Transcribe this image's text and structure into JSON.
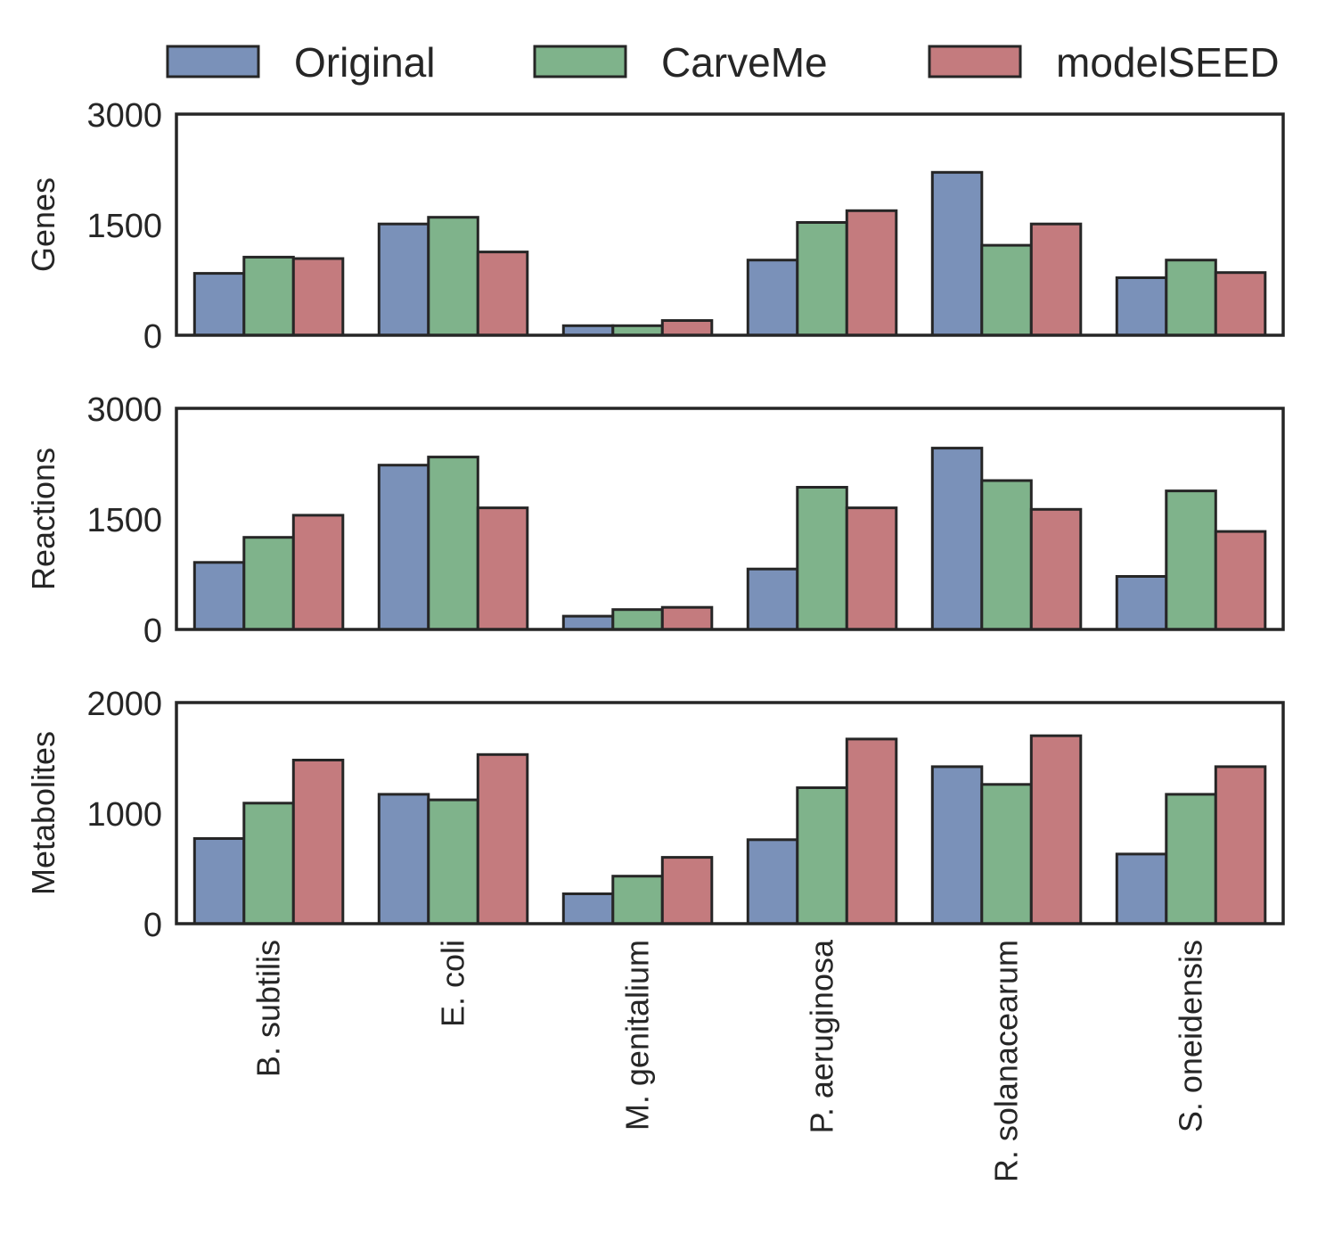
{
  "chart_data": {
    "type": "bar",
    "categories": [
      "B. subtilis",
      "E. coli",
      "M. genitalium",
      "P. aeruginosa",
      "R. solanacearum",
      "S. oneidensis"
    ],
    "legend": {
      "placement": "top",
      "entries": [
        {
          "name": "Original",
          "color": "#7a91b9"
        },
        {
          "name": "CarveMe",
          "color": "#7fb38b"
        },
        {
          "name": "modelSEED",
          "color": "#c47b7e"
        }
      ]
    },
    "panels": [
      {
        "ylabel": "Genes",
        "ylim": [
          0,
          3000
        ],
        "yticks": [
          "0",
          "1500",
          "3000"
        ],
        "series": [
          {
            "name": "Original",
            "values": [
              840,
              1510,
              130,
              1020,
              2210,
              780
            ]
          },
          {
            "name": "CarveMe",
            "values": [
              1060,
              1600,
              130,
              1530,
              1220,
              1020
            ]
          },
          {
            "name": "modelSEED",
            "values": [
              1040,
              1130,
              200,
              1690,
              1510,
              850
            ]
          }
        ]
      },
      {
        "ylabel": "Reactions",
        "ylim": [
          0,
          3000
        ],
        "yticks": [
          "0",
          "1500",
          "3000"
        ],
        "series": [
          {
            "name": "Original",
            "values": [
              910,
              2230,
              180,
              820,
              2460,
              720
            ]
          },
          {
            "name": "CarveMe",
            "values": [
              1250,
              2340,
              270,
              1930,
              2020,
              1880
            ]
          },
          {
            "name": "modelSEED",
            "values": [
              1550,
              1650,
              300,
              1650,
              1630,
              1330
            ]
          }
        ]
      },
      {
        "ylabel": "Metabolites",
        "ylim": [
          0,
          2000
        ],
        "yticks": [
          "0",
          "1000",
          "2000"
        ],
        "series": [
          {
            "name": "Original",
            "values": [
              770,
              1170,
              270,
              760,
              1420,
              630
            ]
          },
          {
            "name": "CarveMe",
            "values": [
              1090,
              1120,
              430,
              1230,
              1260,
              1170
            ]
          },
          {
            "name": "modelSEED",
            "values": [
              1480,
              1530,
              600,
              1670,
              1700,
              1420
            ]
          }
        ]
      }
    ],
    "grid": false
  }
}
